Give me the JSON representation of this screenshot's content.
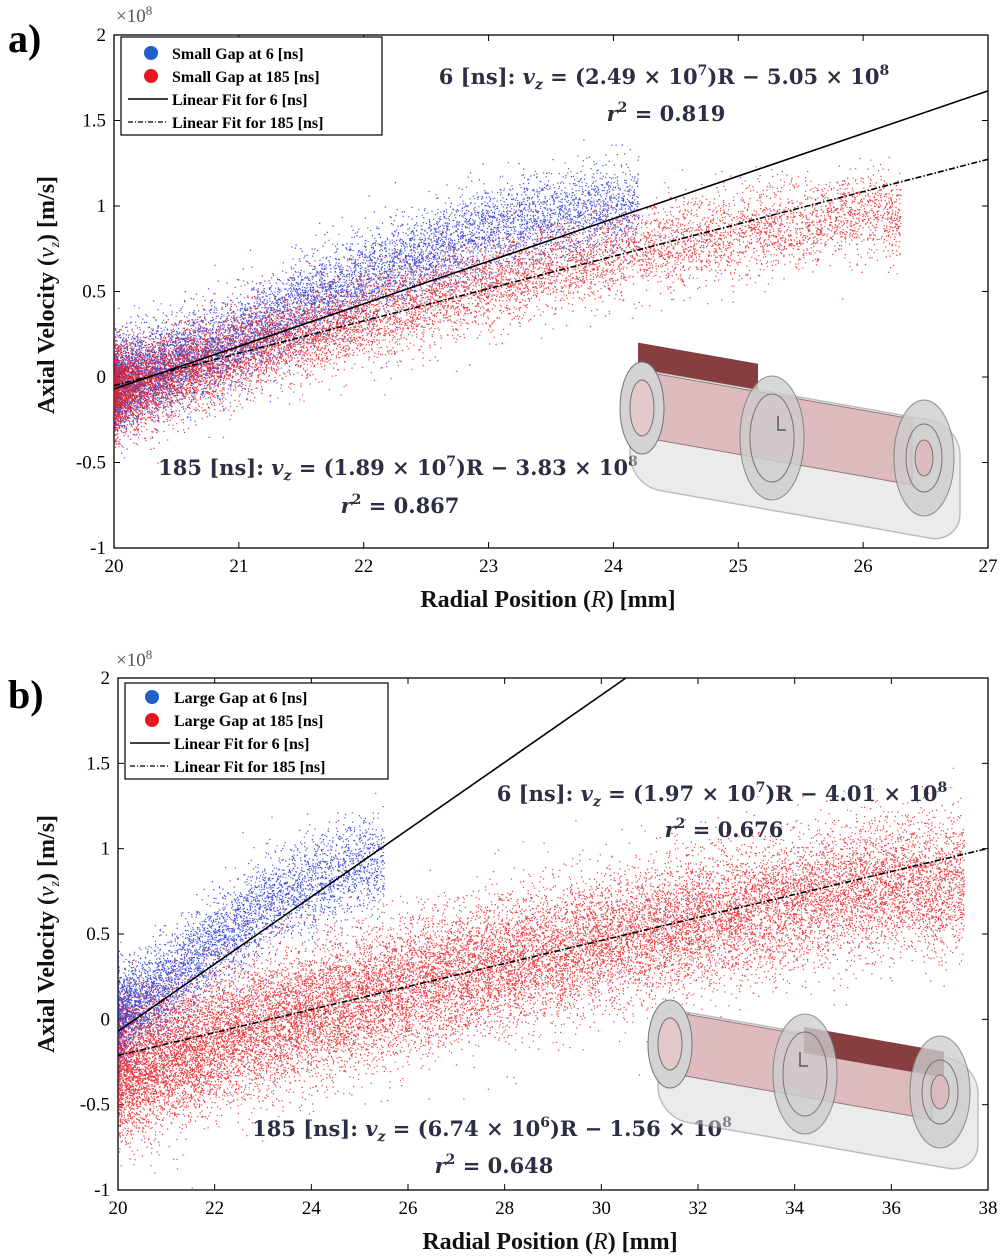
{
  "chart_data": [
    {
      "type": "scatter",
      "panel_label": "a)",
      "xlabel": "Radial Position (R) [mm]",
      "ylabel": "Axial Velocity (v_z) [m/s]",
      "y_scale_label": "×10^8",
      "xlim": [
        20,
        27
      ],
      "ylim": [
        -1,
        2
      ],
      "x_ticks": [
        "20",
        "21",
        "22",
        "23",
        "24",
        "25",
        "26",
        "27"
      ],
      "y_ticks": [
        "-1",
        "-0.5",
        "0",
        "0.5",
        "1",
        "1.5",
        "2"
      ],
      "legend": [
        "Small Gap at 6 [ns]",
        "Small Gap at 185 [ns]",
        "Linear Fit for 6 [ns]",
        "Linear Fit for 185 [ns]"
      ],
      "legend_placement": "top-left",
      "colors": {
        "series_6ns": "#1e2fd6",
        "series_185ns": "#e8191e"
      },
      "series": [
        {
          "name": "Small Gap at 6 [ns]",
          "color": "#1e2fd6",
          "x_range": [
            20,
            24.2
          ],
          "trend": "y ≈ 2.7×10^7 (R−20) roughly, sigma ≈ 0.12×10^8",
          "sample_x": [
            20,
            20.5,
            21,
            21.5,
            22,
            22.5,
            23,
            23.5,
            24
          ],
          "sample_y_center": [
            -0.05,
            0.08,
            0.22,
            0.42,
            0.58,
            0.72,
            0.85,
            0.93,
            1.0
          ]
        },
        {
          "name": "Small Gap at 185 [ns]",
          "color": "#e8191e",
          "x_range": [
            20,
            26.3
          ],
          "sample_x": [
            20,
            21,
            22,
            23,
            24,
            25,
            26
          ],
          "sample_y_center": [
            -0.08,
            0.14,
            0.35,
            0.55,
            0.72,
            0.85,
            0.95
          ]
        }
      ],
      "fits": [
        {
          "name": "Linear Fit for 6 [ns]",
          "slope": 24900000.0,
          "intercept": -505000000.0,
          "r2": 0.819,
          "style": "solid"
        },
        {
          "name": "Linear Fit for 185 [ns]",
          "slope": 18900000.0,
          "intercept": -383000000.0,
          "r2": 0.867,
          "style": "dash-dot"
        }
      ],
      "annotations": [
        {
          "time": "6 [ns]:",
          "lhs": "v",
          "sub": "z",
          "eq": " = (2.49 × 10",
          "sup1": "7",
          "mid": ")R − 5.05 × 10",
          "sup2": "8",
          "r2_label": "r",
          "r2_value": " = 0.819"
        },
        {
          "time": "185 [ns]:",
          "lhs": "v",
          "sub": "z",
          "eq": " = (1.89 × 10",
          "sup1": "7",
          "mid": ")R − 3.83 × 10",
          "sup2": "8",
          "r2_label": "r",
          "r2_value": " = 0.867"
        }
      ]
    },
    {
      "type": "scatter",
      "panel_label": "b)",
      "xlabel": "Radial Position (R) [mm]",
      "ylabel": "Axial Velocity (v_z) [m/s]",
      "y_scale_label": "×10^8",
      "xlim": [
        20,
        38
      ],
      "ylim": [
        -1,
        2
      ],
      "x_ticks": [
        "20",
        "22",
        "24",
        "26",
        "28",
        "30",
        "32",
        "34",
        "36",
        "38"
      ],
      "y_ticks": [
        "-1",
        "-0.5",
        "0",
        "0.5",
        "1",
        "1.5",
        "2"
      ],
      "legend": [
        "Large Gap at 6 [ns]",
        "Large Gap at 185 [ns]",
        "Linear Fit for 6 [ns]",
        "Linear Fit for 185 [ns]"
      ],
      "legend_placement": "top-left",
      "colors": {
        "series_6ns": "#1e2fd6",
        "series_185ns": "#e8191e"
      },
      "series": [
        {
          "name": "Large Gap at 6 [ns]",
          "color": "#1e2fd6",
          "x_range": [
            20,
            25.5
          ],
          "sample_x": [
            20,
            21,
            22,
            23,
            24,
            25
          ],
          "sample_y_center": [
            0.0,
            0.2,
            0.45,
            0.65,
            0.8,
            0.92
          ]
        },
        {
          "name": "Large Gap at 185 [ns]",
          "color": "#e8191e",
          "x_range": [
            20,
            37.5
          ],
          "sample_x": [
            20,
            24,
            28,
            32,
            36
          ],
          "sample_y_center": [
            -0.3,
            0.05,
            0.33,
            0.58,
            0.8
          ]
        }
      ],
      "fits": [
        {
          "name": "Linear Fit for 6 [ns]",
          "slope": 19700000.0,
          "intercept": -401000000.0,
          "r2": 0.676,
          "style": "solid"
        },
        {
          "name": "Linear Fit for 185 [ns]",
          "slope": 6740000.0,
          "intercept": -156000000.0,
          "r2": 0.648,
          "style": "dash-dot"
        }
      ],
      "annotations": [
        {
          "time": "6 [ns]:",
          "lhs": "v",
          "sub": "z",
          "eq": " = (1.97 × 10",
          "sup1": "7",
          "mid": ")R − 4.01 × 10",
          "sup2": "8",
          "r2_label": "r",
          "r2_value": " = 0.676"
        },
        {
          "time": "185 [ns]:",
          "lhs": "v",
          "sub": "z",
          "eq": " = (6.74 × 10",
          "sup1": "6",
          "mid": ")R − 1.56 × 10",
          "sup2": "8",
          "r2_label": "r",
          "r2_value": " = 0.648"
        }
      ]
    }
  ]
}
